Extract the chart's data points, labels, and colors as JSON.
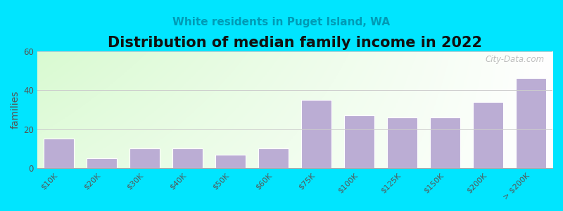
{
  "title": "Distribution of median family income in 2022",
  "subtitle": "White residents in Puget Island, WA",
  "ylabel": "families",
  "categories": [
    "$10K",
    "$20K",
    "$30K",
    "$40K",
    "$50K",
    "$60K",
    "$75K",
    "$100K",
    "$125K",
    "$150K",
    "$200K",
    "> $200K"
  ],
  "values": [
    15,
    5,
    10,
    10,
    7,
    10,
    35,
    27,
    26,
    26,
    34,
    46
  ],
  "bar_color": "#bbadd4",
  "bar_edgecolor": "#ffffff",
  "ylim": [
    0,
    60
  ],
  "yticks": [
    0,
    20,
    40,
    60
  ],
  "background_outer": "#00e5ff",
  "title_fontsize": 15,
  "subtitle_fontsize": 11,
  "subtitle_color": "#009ab5",
  "ylabel_fontsize": 10,
  "watermark": "City-Data.com"
}
